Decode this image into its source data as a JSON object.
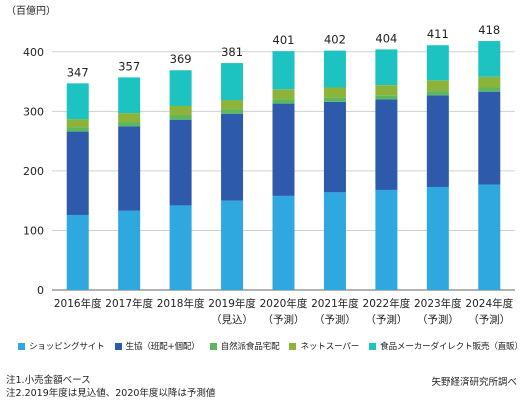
{
  "chart_data": {
    "type": "bar",
    "stacked": true,
    "unit_label": "（百億円）",
    "ylim": [
      0,
      450
    ],
    "yticks": [
      0,
      100,
      200,
      300,
      400
    ],
    "categories": [
      [
        "2016年度",
        ""
      ],
      [
        "2017年度",
        ""
      ],
      [
        "2018年度",
        ""
      ],
      [
        "2019年度",
        "（見込）"
      ],
      [
        "2020年度",
        "（予測）"
      ],
      [
        "2021年度",
        "（予測）"
      ],
      [
        "2022年度",
        "（予測）"
      ],
      [
        "2023年度",
        "（予測）"
      ],
      [
        "2024年度",
        "（予測）"
      ]
    ],
    "totals": [
      347,
      357,
      369,
      381,
      401,
      402,
      404,
      411,
      418
    ],
    "series": [
      {
        "name": "ショッピングサイト",
        "color": "#2fa8e0",
        "values": [
          126,
          133,
          142,
          150,
          158,
          164,
          168,
          173,
          177
        ]
      },
      {
        "name": "生協（班配+個配）",
        "color": "#2e5aac",
        "values": [
          140,
          142,
          144,
          146,
          155,
          152,
          152,
          154,
          156
        ]
      },
      {
        "name": "自然派食品宅配",
        "color": "#5cb85c",
        "values": [
          7,
          7,
          7,
          7,
          7,
          7,
          7,
          7,
          7
        ]
      },
      {
        "name": "ネットスーパー",
        "color": "#8db43a",
        "values": [
          14,
          15,
          16,
          16,
          17,
          17,
          17,
          18,
          18
        ]
      },
      {
        "name": "食品メーカーダイレクト販売（直販）",
        "color": "#1cc3c0",
        "values": [
          60,
          60,
          60,
          62,
          64,
          62,
          60,
          59,
          60
        ]
      }
    ],
    "grid": true,
    "legend_position": "bottom"
  },
  "notes": [
    "注1.小売金額ベース",
    "注2.2019年度は見込値、2020年度以降は予測値"
  ],
  "source": "矢野経済研究所調べ"
}
